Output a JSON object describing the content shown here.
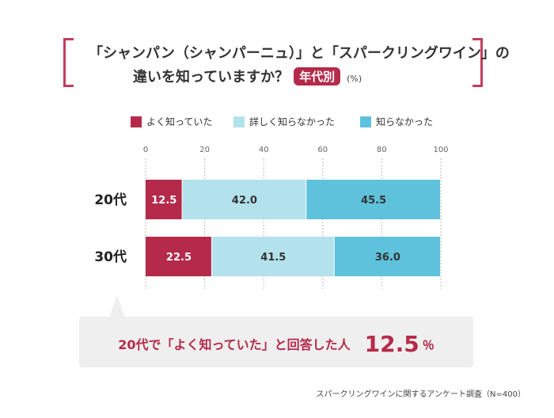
{
  "title": {
    "line1": "「シャンパン（シャンパーニュ）」と「スパークリングワイン」の",
    "line2": "違いを知っていますか？",
    "badge": "年代別",
    "unit": "(%)"
  },
  "colors": {
    "knew_well": "#b52a4a",
    "knew_somewhat": "#b3e2ed",
    "did_not_know": "#5fc2dc",
    "accent": "#b52a4a"
  },
  "chart_data": {
    "type": "bar",
    "orientation": "horizontal",
    "stacked": true,
    "categories": [
      "20代",
      "30代"
    ],
    "series": [
      {
        "name": "よく知っていた",
        "values": [
          12.5,
          22.5
        ]
      },
      {
        "name": "詳しく知らなかった",
        "values": [
          42.0,
          41.5
        ]
      },
      {
        "name": "知らなかった",
        "values": [
          45.5,
          36.0
        ]
      }
    ],
    "xlim": [
      0,
      100
    ],
    "xticks": [
      "0",
      "20",
      "40",
      "60",
      "80",
      "100"
    ],
    "data_labels": [
      [
        "12.5",
        "42.0",
        "45.5"
      ],
      [
        "22.5",
        "41.5",
        "36.0"
      ]
    ],
    "legend_position": "top",
    "grid": true
  },
  "callout": {
    "text": "20代で「よく知っていた」と回答した人",
    "value": "12.5",
    "unit": "％"
  },
  "source": "スパークリングワインに関するアンケート調査（N=400）"
}
